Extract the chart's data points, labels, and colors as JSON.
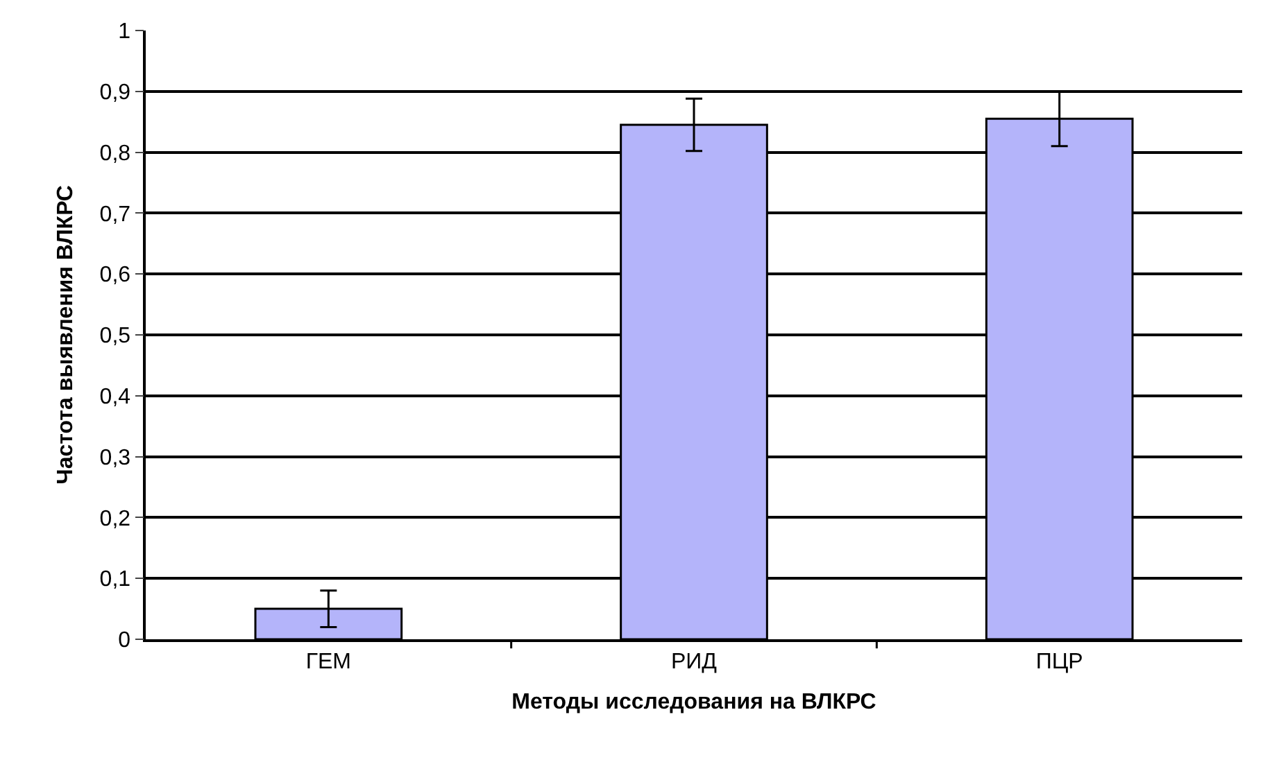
{
  "chart_data": {
    "type": "bar",
    "categories": [
      "ГЕМ",
      "РИД",
      "ПЦР"
    ],
    "values": [
      0.05,
      0.845,
      0.855
    ],
    "errors": [
      0.03,
      0.043,
      0.045
    ],
    "color": "#b4b4fa",
    "xlabel": "Методы исследования на ВЛКРС",
    "ylabel": "Частота выявления ВЛКРС",
    "ylim": [
      0,
      1
    ],
    "yticks": [
      0,
      {
        "value": 0.1,
        "label": "0,1"
      },
      {
        "value": 0.2,
        "label": "0,2"
      },
      {
        "value": 0.3,
        "label": "0,3"
      },
      {
        "value": 0.4,
        "label": "0,4"
      },
      {
        "value": 0.5,
        "label": "0,5"
      },
      {
        "value": 0.6,
        "label": "0,6"
      },
      {
        "value": 0.7,
        "label": "0,7"
      },
      {
        "value": 0.8,
        "label": "0,8"
      },
      {
        "value": 0.9,
        "label": "0,9"
      },
      1
    ],
    "grid": "y",
    "legend": false
  }
}
